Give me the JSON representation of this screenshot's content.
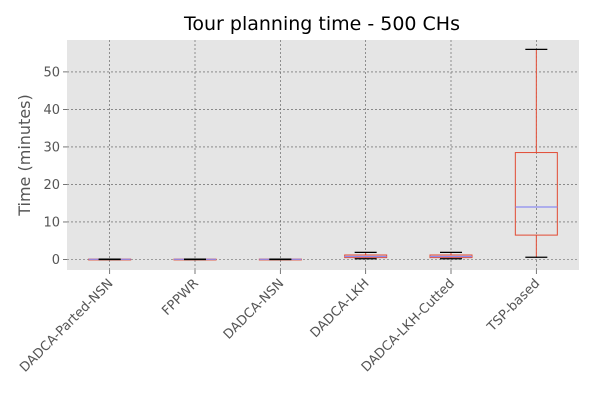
{
  "chart_data": {
    "type": "box",
    "title": "Tour planning time - 500 CHs",
    "xlabel": "",
    "ylabel": "Time (minutes)",
    "ylim": [
      -2.8,
      58.5
    ],
    "yticks": [
      0,
      10,
      20,
      30,
      40,
      50
    ],
    "grid": true,
    "categories": [
      "DADCA-Parted-NSN",
      "FPPWR",
      "DADCA-NSN",
      "DADCA-LKH",
      "DADCA-LKH-Cutted",
      "TSP-based"
    ],
    "boxes": [
      {
        "whisker_low": 0.0,
        "q1": 0.0,
        "median": 0.05,
        "q3": 0.1,
        "whisker_high": 0.1
      },
      {
        "whisker_low": 0.0,
        "q1": 0.0,
        "median": 0.05,
        "q3": 0.1,
        "whisker_high": 0.1
      },
      {
        "whisker_low": 0.0,
        "q1": 0.0,
        "median": 0.05,
        "q3": 0.1,
        "whisker_high": 0.1
      },
      {
        "whisker_low": 0.2,
        "q1": 0.5,
        "median": 0.8,
        "q3": 1.2,
        "whisker_high": 1.9
      },
      {
        "whisker_low": 0.2,
        "q1": 0.5,
        "median": 0.8,
        "q3": 1.2,
        "whisker_high": 1.9
      },
      {
        "whisker_low": 0.6,
        "q1": 6.5,
        "median": 14.0,
        "q3": 28.5,
        "whisker_high": 56.0
      }
    ],
    "colors": {
      "background": "#e5e5e5",
      "grid": "#555555",
      "box": "#e24a33",
      "median": "#8c8cf0",
      "whisker": "#e24a33",
      "cap": "#000000",
      "tick_text": "#555555"
    }
  }
}
